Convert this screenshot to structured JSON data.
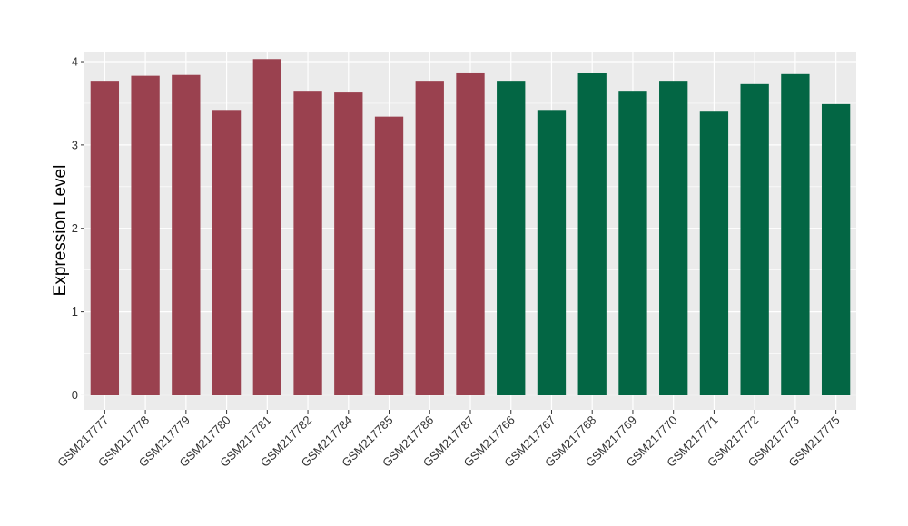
{
  "chart_data": {
    "type": "bar",
    "title": "",
    "xlabel": "",
    "ylabel": "Expression Level",
    "ylim": [
      -0.18,
      4.12
    ],
    "yticks": [
      0,
      1,
      2,
      3,
      4
    ],
    "grid": true,
    "legend": "none",
    "categories": [
      "GSM217777",
      "GSM217778",
      "GSM217779",
      "GSM217780",
      "GSM217781",
      "GSM217782",
      "GSM217784",
      "GSM217785",
      "GSM217786",
      "GSM217787",
      "GSM217766",
      "GSM217767",
      "GSM217768",
      "GSM217769",
      "GSM217770",
      "GSM217771",
      "GSM217772",
      "GSM217773",
      "GSM217775"
    ],
    "values": [
      3.77,
      3.83,
      3.84,
      3.42,
      4.03,
      3.65,
      3.64,
      3.34,
      3.77,
      3.87,
      3.77,
      3.42,
      3.86,
      3.65,
      3.77,
      3.41,
      3.73,
      3.85,
      3.49
    ],
    "groups": [
      0,
      0,
      0,
      0,
      0,
      0,
      0,
      0,
      0,
      0,
      1,
      1,
      1,
      1,
      1,
      1,
      1,
      1,
      1
    ],
    "colors": {
      "group0": "#9a414f",
      "group1": "#036644",
      "panel": "#ebebeb",
      "grid": "#ffffff"
    }
  }
}
